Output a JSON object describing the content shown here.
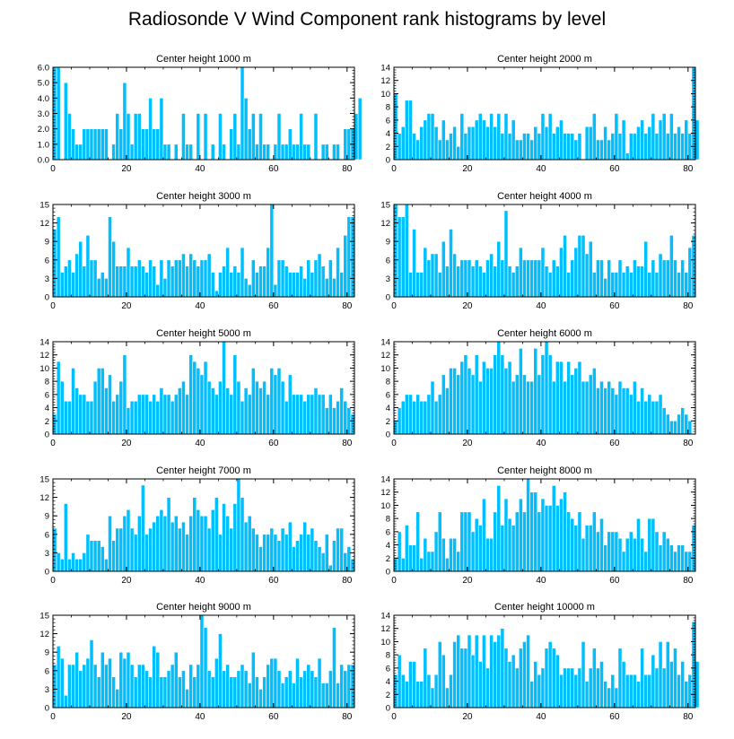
{
  "figure": {
    "title": "Radiosonde V Wind Component rank histograms by level",
    "bar_color": "#00bfff",
    "bar_edge_color": "#ffffff",
    "axis_color": "#000000"
  },
  "chart_data": [
    {
      "type": "bar",
      "title": "Center height 1000 m",
      "xlim": [
        0,
        82
      ],
      "ylim": [
        0,
        6
      ],
      "xticks": [
        0,
        20,
        40,
        60,
        80
      ],
      "yticks": [
        0,
        1,
        2,
        3,
        4,
        5,
        6
      ],
      "ytick_labels": [
        "0.0",
        "1.0",
        "2.0",
        "3.0",
        "4.0",
        "5.0",
        "6.0"
      ],
      "values": [
        6,
        6,
        0,
        5,
        3,
        2,
        1,
        1,
        2,
        2,
        2,
        2,
        2,
        2,
        2,
        0,
        1,
        3,
        2,
        5,
        3,
        1,
        3,
        3,
        2,
        2,
        4,
        2,
        2,
        4,
        1,
        1,
        0,
        1,
        0,
        3,
        1,
        1,
        0,
        3,
        0,
        3,
        0,
        1,
        0,
        3,
        1,
        0,
        2,
        3,
        1,
        6,
        4,
        2,
        3,
        1,
        3,
        1,
        1,
        0,
        1,
        3,
        1,
        1,
        2,
        1,
        1,
        3,
        1,
        1,
        0,
        3,
        0,
        1,
        1,
        0,
        1,
        1,
        0,
        2,
        2,
        2,
        3,
        4
      ]
    },
    {
      "type": "bar",
      "title": "Center height 2000 m",
      "xlim": [
        0,
        82
      ],
      "ylim": [
        0,
        14
      ],
      "xticks": [
        0,
        20,
        40,
        60,
        80
      ],
      "yticks": [
        0,
        2,
        4,
        6,
        8,
        10,
        12,
        14
      ],
      "ytick_labels": [
        "0",
        "2",
        "4",
        "6",
        "8",
        "10",
        "12",
        "14"
      ],
      "values": [
        10,
        4,
        5,
        9,
        9,
        4,
        3,
        5,
        6,
        7,
        7,
        5,
        3,
        6,
        3,
        4,
        5,
        2,
        7,
        4,
        5,
        5,
        6,
        7,
        6,
        5,
        7,
        5,
        7,
        4,
        7,
        4,
        6,
        3,
        3,
        4,
        4,
        3,
        5,
        4,
        7,
        5,
        7,
        4,
        5,
        6,
        4,
        4,
        4,
        3,
        4,
        0,
        5,
        5,
        7,
        3,
        3,
        5,
        3,
        4,
        7,
        4,
        6,
        1,
        4,
        4,
        5,
        6,
        4,
        5,
        7,
        4,
        6,
        7,
        4,
        7,
        4,
        5,
        4,
        6,
        4,
        14,
        6
      ]
    },
    {
      "type": "bar",
      "title": "Center height 3000 m",
      "xlim": [
        0,
        82
      ],
      "ylim": [
        0,
        15
      ],
      "xticks": [
        0,
        20,
        40,
        60,
        80
      ],
      "yticks": [
        0,
        3,
        6,
        9,
        12,
        15
      ],
      "ytick_labels": [
        "0",
        "3",
        "6",
        "9",
        "12",
        "15"
      ],
      "values": [
        11,
        13,
        4,
        5,
        6,
        4,
        7,
        9,
        5,
        10,
        6,
        6,
        3,
        4,
        3,
        13,
        9,
        5,
        5,
        5,
        8,
        5,
        5,
        6,
        5,
        4,
        6,
        5,
        2,
        6,
        3,
        6,
        5,
        6,
        6,
        7,
        5,
        7,
        6,
        5,
        6,
        6,
        7,
        4,
        1,
        4,
        5,
        8,
        4,
        5,
        4,
        8,
        3,
        2,
        6,
        4,
        5,
        5,
        8,
        15,
        2,
        6,
        6,
        5,
        4,
        4,
        4,
        5,
        3,
        6,
        4,
        6,
        7,
        5,
        3,
        6,
        3,
        8,
        4,
        10,
        13,
        13
      ]
    },
    {
      "type": "bar",
      "title": "Center height 4000 m",
      "xlim": [
        0,
        82
      ],
      "ylim": [
        0,
        15
      ],
      "xticks": [
        0,
        20,
        40,
        60,
        80
      ],
      "yticks": [
        0,
        3,
        6,
        9,
        12,
        15
      ],
      "ytick_labels": [
        "0",
        "3",
        "6",
        "9",
        "12",
        "15"
      ],
      "values": [
        15,
        13,
        13,
        15,
        4,
        11,
        4,
        4,
        8,
        6,
        7,
        7,
        4,
        9,
        5,
        11,
        7,
        5,
        6,
        6,
        6,
        5,
        6,
        5,
        4,
        6,
        7,
        5,
        9,
        6,
        14,
        5,
        4,
        5,
        8,
        6,
        6,
        6,
        6,
        6,
        8,
        5,
        4,
        6,
        5,
        8,
        10,
        4,
        6,
        8,
        10,
        10,
        7,
        9,
        4,
        6,
        6,
        3,
        6,
        4,
        4,
        6,
        4,
        5,
        4,
        6,
        5,
        5,
        9,
        4,
        6,
        4,
        7,
        6,
        6,
        10,
        6,
        4,
        6,
        4,
        8,
        10
      ]
    },
    {
      "type": "bar",
      "title": "Center height 5000 m",
      "xlim": [
        0,
        82
      ],
      "ylim": [
        0,
        14
      ],
      "xticks": [
        0,
        20,
        40,
        60,
        80
      ],
      "yticks": [
        0,
        2,
        4,
        6,
        8,
        10,
        12,
        14
      ],
      "ytick_labels": [
        "0",
        "2",
        "4",
        "6",
        "8",
        "10",
        "12",
        "14"
      ],
      "values": [
        3,
        11,
        8,
        5,
        5,
        10,
        7,
        6,
        6,
        5,
        5,
        8,
        10,
        10,
        7,
        9,
        5,
        6,
        8,
        12,
        4,
        5,
        5,
        6,
        6,
        6,
        5,
        6,
        5,
        7,
        6,
        6,
        5,
        6,
        7,
        8,
        6,
        12,
        11,
        10,
        9,
        11,
        8,
        7,
        6,
        8,
        14,
        7,
        6,
        12,
        8,
        5,
        7,
        6,
        10,
        8,
        7,
        8,
        6,
        10,
        9,
        10,
        8,
        5,
        9,
        6,
        6,
        6,
        5,
        6,
        6,
        7,
        6,
        6,
        4,
        6,
        4,
        5,
        7,
        5,
        4,
        3
      ]
    },
    {
      "type": "bar",
      "title": "Center height 6000 m",
      "xlim": [
        0,
        82
      ],
      "ylim": [
        0,
        14
      ],
      "xticks": [
        0,
        20,
        40,
        60,
        80
      ],
      "yticks": [
        0,
        2,
        4,
        6,
        8,
        10,
        12,
        14
      ],
      "ytick_labels": [
        "0",
        "2",
        "4",
        "6",
        "8",
        "10",
        "12",
        "14"
      ],
      "values": [
        2,
        4,
        5,
        6,
        6,
        5,
        6,
        5,
        5,
        6,
        8,
        5,
        6,
        9,
        7,
        10,
        10,
        9,
        11,
        12,
        10,
        9,
        12,
        8,
        11,
        10,
        10,
        12,
        14,
        12,
        10,
        11,
        8,
        9,
        13,
        9,
        8,
        8,
        13,
        9,
        12,
        14,
        12,
        8,
        11,
        11,
        8,
        11,
        9,
        10,
        11,
        8,
        8,
        9,
        10,
        7,
        8,
        7,
        8,
        7,
        6,
        8,
        7,
        7,
        6,
        8,
        5,
        7,
        5,
        6,
        5,
        5,
        6,
        4,
        3,
        2,
        2,
        3,
        4,
        3,
        2
      ]
    },
    {
      "type": "bar",
      "title": "Center height 7000 m",
      "xlim": [
        0,
        82
      ],
      "ylim": [
        0,
        15
      ],
      "xticks": [
        0,
        20,
        40,
        60,
        80
      ],
      "yticks": [
        0,
        3,
        6,
        9,
        12,
        15
      ],
      "ytick_labels": [
        "0",
        "3",
        "6",
        "9",
        "12",
        "15"
      ],
      "values": [
        7,
        3,
        2,
        11,
        2,
        3,
        2,
        2,
        3,
        6,
        5,
        5,
        5,
        4,
        2,
        9,
        5,
        7,
        7,
        9,
        10,
        7,
        6,
        9,
        14,
        6,
        7,
        8,
        9,
        10,
        9,
        12,
        8,
        9,
        7,
        8,
        6,
        9,
        12,
        10,
        9,
        9,
        7,
        10,
        12,
        6,
        11,
        9,
        7,
        11,
        15,
        12,
        8,
        9,
        7,
        6,
        4,
        6,
        6,
        7,
        6,
        5,
        7,
        6,
        8,
        4,
        5,
        6,
        8,
        6,
        7,
        5,
        4,
        3,
        6,
        1,
        5,
        7,
        7,
        3,
        4,
        2
      ]
    },
    {
      "type": "bar",
      "title": "Center height 8000 m",
      "xlim": [
        0,
        82
      ],
      "ylim": [
        0,
        14
      ],
      "xticks": [
        0,
        20,
        40,
        60,
        80
      ],
      "yticks": [
        0,
        2,
        4,
        6,
        8,
        10,
        12,
        14
      ],
      "ytick_labels": [
        "0",
        "2",
        "4",
        "6",
        "8",
        "10",
        "12",
        "14"
      ],
      "values": [
        2,
        6,
        2,
        7,
        4,
        4,
        9,
        2,
        5,
        3,
        3,
        6,
        9,
        5,
        2,
        5,
        5,
        3,
        9,
        9,
        9,
        6,
        8,
        7,
        11,
        5,
        5,
        9,
        13,
        7,
        11,
        8,
        7,
        9,
        11,
        9,
        14,
        12,
        12,
        9,
        11,
        10,
        10,
        13,
        10,
        11,
        12,
        9,
        8,
        7,
        9,
        5,
        7,
        7,
        9,
        6,
        8,
        4,
        6,
        6,
        6,
        5,
        3,
        5,
        6,
        5,
        8,
        5,
        3,
        8,
        8,
        6,
        4,
        6,
        5,
        4,
        3,
        4,
        4,
        3,
        3,
        7
      ]
    },
    {
      "type": "bar",
      "title": "Center height 9000 m",
      "xlim": [
        0,
        82
      ],
      "ylim": [
        0,
        15
      ],
      "xticks": [
        0,
        20,
        40,
        60,
        80
      ],
      "yticks": [
        0,
        3,
        6,
        9,
        12,
        15
      ],
      "ytick_labels": [
        "0",
        "3",
        "6",
        "9",
        "12",
        "15"
      ],
      "values": [
        7,
        10,
        8,
        2,
        7,
        7,
        9,
        6,
        7,
        8,
        11,
        7,
        5,
        9,
        7,
        8,
        5,
        3,
        9,
        8,
        9,
        7,
        5,
        7,
        7,
        6,
        5,
        10,
        9,
        5,
        5,
        6,
        7,
        9,
        5,
        6,
        3,
        7,
        5,
        7,
        15,
        13,
        6,
        5,
        8,
        12,
        6,
        7,
        5,
        5,
        6,
        7,
        6,
        4,
        9,
        5,
        3,
        5,
        7,
        8,
        8,
        6,
        4,
        5,
        6,
        4,
        8,
        5,
        6,
        7,
        6,
        5,
        8,
        4,
        4,
        6,
        13,
        4,
        7,
        6,
        7,
        7
      ]
    },
    {
      "type": "bar",
      "title": "Center height 10000 m",
      "xlim": [
        0,
        82
      ],
      "ylim": [
        0,
        14
      ],
      "xticks": [
        0,
        20,
        40,
        60,
        80
      ],
      "yticks": [
        0,
        2,
        4,
        6,
        8,
        10,
        12,
        14
      ],
      "ytick_labels": [
        "0",
        "2",
        "4",
        "6",
        "8",
        "10",
        "12",
        "14"
      ],
      "values": [
        5,
        8,
        5,
        4,
        7,
        7,
        4,
        4,
        9,
        5,
        3,
        5,
        10,
        8,
        3,
        5,
        10,
        11,
        9,
        9,
        11,
        8,
        11,
        7,
        11,
        6,
        11,
        10,
        11,
        12,
        9,
        7,
        8,
        6,
        9,
        10,
        11,
        4,
        7,
        5,
        6,
        9,
        10,
        9,
        8,
        5,
        6,
        6,
        6,
        5,
        6,
        10,
        4,
        6,
        9,
        6,
        7,
        4,
        3,
        5,
        3,
        9,
        7,
        5,
        5,
        5,
        4,
        9,
        5,
        5,
        8,
        6,
        10,
        6,
        10,
        7,
        9,
        5,
        7,
        4,
        5,
        13,
        7
      ]
    }
  ]
}
